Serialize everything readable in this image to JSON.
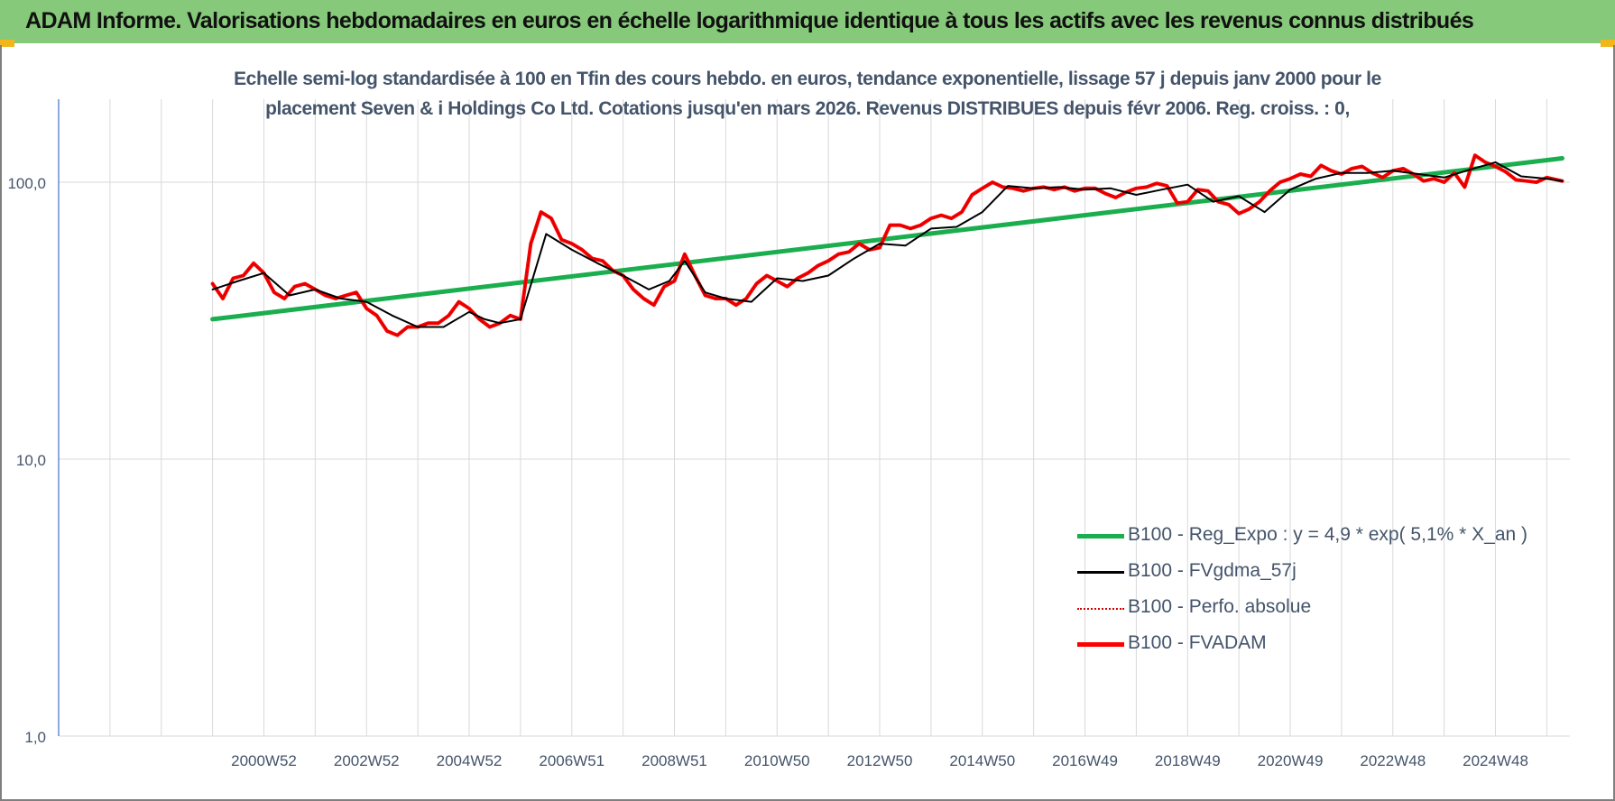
{
  "header": {
    "title": "ADAM Informe. Valorisations hebdomadaires en euros en échelle logarithmique identique à tous les actifs avec les revenus connus distribués"
  },
  "colors": {
    "title_bar": "#86c97a",
    "regression": "#1aae4e",
    "smoothed": "#000000",
    "absolute": "#d00000",
    "fvadam": "#ff0000",
    "grid": "#d9d9d9",
    "text": "#44546a"
  },
  "chart_data": {
    "type": "line",
    "title_lines": [
      "Echelle semi-log standardisée à 100 en Tfin des cours hebdo. en euros, tendance exponentielle, lissage 57 j depuis janv 2000 pour le",
      "placement Seven & i Holdings Co Ltd. Cotations jusqu'en mars 2026. Revenus DISTRIBUES depuis févr 2006. Reg. croiss. : 0,"
    ],
    "y_scale": "log",
    "ylim": [
      1,
      200
    ],
    "y_ticks": [
      {
        "value": 1,
        "label": "1,0"
      },
      {
        "value": 10,
        "label": "10,0"
      },
      {
        "value": 100,
        "label": "100,0"
      }
    ],
    "x_range": [
      1997.0,
      2026.45
    ],
    "x_ticks": [
      {
        "x": 2001.0,
        "label": "2000W52"
      },
      {
        "x": 2003.0,
        "label": "2002W52"
      },
      {
        "x": 2005.0,
        "label": "2004W52"
      },
      {
        "x": 2007.0,
        "label": "2006W51"
      },
      {
        "x": 2009.0,
        "label": "2008W51"
      },
      {
        "x": 2011.0,
        "label": "2010W50"
      },
      {
        "x": 2013.0,
        "label": "2012W50"
      },
      {
        "x": 2015.0,
        "label": "2014W50"
      },
      {
        "x": 2017.0,
        "label": "2016W49"
      },
      {
        "x": 2019.0,
        "label": "2018W49"
      },
      {
        "x": 2021.0,
        "label": "2020W49"
      },
      {
        "x": 2023.0,
        "label": "2022W48"
      },
      {
        "x": 2025.0,
        "label": "2024W48"
      }
    ],
    "legend_position": "right",
    "series": [
      {
        "name": "B100 - Reg_Expo : y = 4,9 * exp( 5,1% *  X_an )",
        "style": "thick-green",
        "x": [
          2000.0,
          2026.3
        ],
        "y": [
          32,
          122
        ]
      },
      {
        "name": "B100 - FVgdma_57j",
        "style": "thin-black",
        "x": [
          2000.0,
          2000.5,
          2001.0,
          2001.5,
          2002.0,
          2002.5,
          2003.0,
          2003.5,
          2004.0,
          2004.5,
          2005.0,
          2005.3,
          2005.6,
          2006.0,
          2006.5,
          2007.0,
          2007.5,
          2008.0,
          2008.5,
          2008.9,
          2009.2,
          2009.6,
          2010.0,
          2010.5,
          2011.0,
          2011.5,
          2012.0,
          2012.5,
          2013.0,
          2013.5,
          2014.0,
          2014.5,
          2015.0,
          2015.5,
          2016.0,
          2016.5,
          2017.0,
          2017.5,
          2018.0,
          2018.5,
          2019.0,
          2019.5,
          2020.0,
          2020.5,
          2021.0,
          2021.5,
          2022.0,
          2022.5,
          2023.0,
          2023.5,
          2024.0,
          2024.5,
          2025.0,
          2025.5,
          2026.0,
          2026.3
        ],
        "y": [
          41,
          44,
          47,
          39,
          41,
          38,
          37,
          33,
          30,
          30,
          34,
          32,
          31,
          32,
          65,
          57,
          51,
          46,
          41,
          44,
          52,
          40,
          38,
          37,
          45,
          44,
          46,
          53,
          60,
          59,
          68,
          69,
          78,
          97,
          95,
          96,
          94,
          95,
          90,
          94,
          98,
          85,
          89,
          78,
          94,
          103,
          108,
          108,
          110,
          107,
          104,
          111,
          118,
          105,
          103,
          101
        ]
      },
      {
        "name": "B100 - Perfo. absolue",
        "style": "dotted-darkred",
        "x": [
          2000.0,
          2000.2,
          2000.4,
          2000.6,
          2000.8,
          2001.0,
          2001.2,
          2001.4,
          2001.6,
          2001.8,
          2002.0,
          2002.2,
          2002.4,
          2002.6,
          2002.8,
          2003.0,
          2003.2,
          2003.4,
          2003.6,
          2003.8,
          2004.0,
          2004.2,
          2004.4,
          2004.6,
          2004.8,
          2005.0,
          2005.2,
          2005.4,
          2005.6,
          2005.8,
          2006.0,
          2006.2,
          2006.4,
          2006.6,
          2006.8,
          2007.0,
          2007.2,
          2007.4,
          2007.6,
          2007.8,
          2008.0,
          2008.2,
          2008.4,
          2008.6,
          2008.8,
          2009.0,
          2009.2,
          2009.4,
          2009.6,
          2009.8,
          2010.0,
          2010.2,
          2010.4,
          2010.6,
          2010.8,
          2011.0,
          2011.2,
          2011.4,
          2011.6,
          2011.8,
          2012.0,
          2012.2,
          2012.4,
          2012.6,
          2012.8,
          2013.0,
          2013.2,
          2013.4,
          2013.6,
          2013.8,
          2014.0,
          2014.2,
          2014.4,
          2014.6,
          2014.8,
          2015.0,
          2015.2,
          2015.4,
          2015.6,
          2015.8,
          2016.0,
          2016.2,
          2016.4,
          2016.6,
          2016.8,
          2017.0,
          2017.2,
          2017.4,
          2017.6,
          2017.8,
          2018.0,
          2018.2,
          2018.4,
          2018.6,
          2018.8,
          2019.0,
          2019.2,
          2019.4,
          2019.6,
          2019.8,
          2020.0,
          2020.2,
          2020.4,
          2020.6,
          2020.8,
          2021.0,
          2021.2,
          2021.4,
          2021.6,
          2021.8,
          2022.0,
          2022.2,
          2022.4,
          2022.6,
          2022.8,
          2023.0,
          2023.2,
          2023.4,
          2023.6,
          2023.8,
          2024.0,
          2024.2,
          2024.4,
          2024.6,
          2024.8,
          2025.0,
          2025.2,
          2025.4,
          2025.6,
          2025.8,
          2026.0,
          2026.3
        ],
        "y": [
          43,
          38,
          45,
          46,
          51,
          47,
          40,
          38,
          42,
          43,
          41,
          39,
          38,
          39,
          40,
          35,
          33,
          29,
          28,
          30,
          30,
          31,
          31,
          33,
          37,
          35,
          32,
          30,
          31,
          33,
          32,
          60,
          78,
          74,
          62,
          60,
          57,
          53,
          52,
          48,
          46,
          41,
          38,
          36,
          42,
          44,
          55,
          46,
          39,
          38,
          38,
          36,
          38,
          43,
          46,
          44,
          42,
          45,
          47,
          50,
          52,
          55,
          56,
          60,
          57,
          58,
          70,
          70,
          68,
          70,
          74,
          76,
          74,
          78,
          90,
          95,
          100,
          96,
          95,
          93,
          95,
          96,
          94,
          96,
          93,
          95,
          95,
          91,
          88,
          92,
          95,
          96,
          99,
          97,
          84,
          85,
          94,
          93,
          85,
          83,
          77,
          80,
          85,
          93,
          100,
          103,
          107,
          105,
          115,
          110,
          107,
          112,
          114,
          108,
          104,
          110,
          112,
          107,
          101,
          103,
          100,
          108,
          96,
          125,
          118,
          114,
          109,
          102,
          101,
          100,
          104,
          101
        ]
      },
      {
        "name": "B100 - FVADAM",
        "style": "thick-red",
        "x": [
          2000.0,
          2000.2,
          2000.4,
          2000.6,
          2000.8,
          2001.0,
          2001.2,
          2001.4,
          2001.6,
          2001.8,
          2002.0,
          2002.2,
          2002.4,
          2002.6,
          2002.8,
          2003.0,
          2003.2,
          2003.4,
          2003.6,
          2003.8,
          2004.0,
          2004.2,
          2004.4,
          2004.6,
          2004.8,
          2005.0,
          2005.2,
          2005.4,
          2005.6,
          2005.8,
          2006.0,
          2006.2,
          2006.4,
          2006.6,
          2006.8,
          2007.0,
          2007.2,
          2007.4,
          2007.6,
          2007.8,
          2008.0,
          2008.2,
          2008.4,
          2008.6,
          2008.8,
          2009.0,
          2009.2,
          2009.4,
          2009.6,
          2009.8,
          2010.0,
          2010.2,
          2010.4,
          2010.6,
          2010.8,
          2011.0,
          2011.2,
          2011.4,
          2011.6,
          2011.8,
          2012.0,
          2012.2,
          2012.4,
          2012.6,
          2012.8,
          2013.0,
          2013.2,
          2013.4,
          2013.6,
          2013.8,
          2014.0,
          2014.2,
          2014.4,
          2014.6,
          2014.8,
          2015.0,
          2015.2,
          2015.4,
          2015.6,
          2015.8,
          2016.0,
          2016.2,
          2016.4,
          2016.6,
          2016.8,
          2017.0,
          2017.2,
          2017.4,
          2017.6,
          2017.8,
          2018.0,
          2018.2,
          2018.4,
          2018.6,
          2018.8,
          2019.0,
          2019.2,
          2019.4,
          2019.6,
          2019.8,
          2020.0,
          2020.2,
          2020.4,
          2020.6,
          2020.8,
          2021.0,
          2021.2,
          2021.4,
          2021.6,
          2021.8,
          2022.0,
          2022.2,
          2022.4,
          2022.6,
          2022.8,
          2023.0,
          2023.2,
          2023.4,
          2023.6,
          2023.8,
          2024.0,
          2024.2,
          2024.4,
          2024.6,
          2024.8,
          2025.0,
          2025.2,
          2025.4,
          2025.6,
          2025.8,
          2026.0,
          2026.3
        ],
        "y": [
          43,
          38,
          45,
          46,
          51,
          47,
          40,
          38,
          42,
          43,
          41,
          39,
          38,
          39,
          40,
          35,
          33,
          29,
          28,
          30,
          30,
          31,
          31,
          33,
          37,
          35,
          32,
          30,
          31,
          33,
          32,
          60,
          78,
          74,
          62,
          60,
          57,
          53,
          52,
          48,
          46,
          41,
          38,
          36,
          42,
          44,
          55,
          46,
          39,
          38,
          38,
          36,
          38,
          43,
          46,
          44,
          42,
          45,
          47,
          50,
          52,
          55,
          56,
          60,
          57,
          58,
          70,
          70,
          68,
          70,
          74,
          76,
          74,
          78,
          90,
          95,
          100,
          96,
          95,
          93,
          95,
          96,
          94,
          96,
          93,
          95,
          95,
          91,
          88,
          92,
          95,
          96,
          99,
          97,
          84,
          85,
          94,
          93,
          85,
          83,
          77,
          80,
          85,
          93,
          100,
          103,
          107,
          105,
          115,
          110,
          107,
          112,
          114,
          108,
          104,
          110,
          112,
          107,
          101,
          103,
          100,
          108,
          96,
          125,
          118,
          114,
          109,
          102,
          101,
          100,
          104,
          101
        ]
      }
    ]
  }
}
